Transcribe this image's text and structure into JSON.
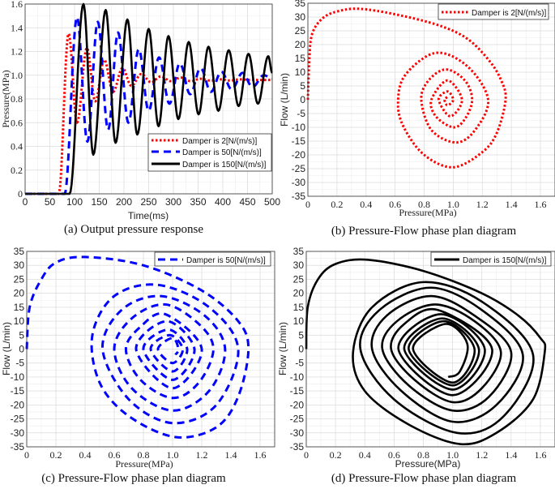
{
  "chart_data": [
    {
      "type": "line",
      "caption": "(a) Output pressure response",
      "xlabel": "Time(ms)",
      "ylabel": "Pressure(MPa)",
      "xlim": [
        0,
        500
      ],
      "ylim": [
        0,
        1.6
      ],
      "xticks": [
        "0",
        "50",
        "100",
        "150",
        "200",
        "250",
        "300",
        "350",
        "400",
        "450",
        "500"
      ],
      "yticks": [
        "0",
        "0.2",
        "0.4",
        "0.6",
        "0.8",
        "1.0",
        "1.2",
        "1.4",
        "1.6"
      ],
      "grid": true,
      "legend": "bottom-right",
      "series": [
        {
          "name": "Damper is 2[N/(m/s)]",
          "color": "#ff0000",
          "style": "dotted",
          "points": [
            [
              0,
              0
            ],
            [
              68,
              0
            ],
            [
              88,
              1.35
            ],
            [
              105,
              0.6
            ],
            [
              125,
              1.23
            ],
            [
              142,
              0.78
            ],
            [
              160,
              1.13
            ],
            [
              178,
              0.86
            ],
            [
              197,
              1.06
            ],
            [
              215,
              0.91
            ],
            [
              235,
              1.01
            ],
            [
              255,
              0.94
            ],
            [
              275,
              0.99
            ],
            [
              295,
              0.95
            ],
            [
              315,
              0.98
            ],
            [
              335,
              0.95
            ],
            [
              355,
              0.97
            ],
            [
              375,
              0.955
            ],
            [
              395,
              0.965
            ],
            [
              415,
              0.955
            ],
            [
              435,
              0.965
            ],
            [
              455,
              0.96
            ],
            [
              500,
              0.96
            ]
          ]
        },
        {
          "name": "Damper is 50[N/(m/s)]",
          "color": "#0000ff",
          "style": "dashed",
          "points": [
            [
              0,
              0
            ],
            [
              80,
              0
            ],
            [
              105,
              1.49
            ],
            [
              126,
              0.44
            ],
            [
              147,
              1.45
            ],
            [
              168,
              0.54
            ],
            [
              188,
              1.36
            ],
            [
              209,
              0.6
            ],
            [
              230,
              1.22
            ],
            [
              250,
              0.7
            ],
            [
              271,
              1.15
            ],
            [
              292,
              0.76
            ],
            [
              313,
              1.1
            ],
            [
              334,
              0.84
            ],
            [
              355,
              1.06
            ],
            [
              376,
              0.86
            ],
            [
              397,
              1.03
            ],
            [
              418,
              0.88
            ],
            [
              440,
              1.02
            ],
            [
              460,
              0.9
            ],
            [
              483,
              1.0
            ],
            [
              500,
              0.97
            ]
          ]
        },
        {
          "name": "Damper is 150[N/(m/s)]",
          "color": "#000000",
          "style": "solid",
          "points": [
            [
              0,
              0
            ],
            [
              90,
              0
            ],
            [
              118,
              1.6
            ],
            [
              138,
              0.33
            ],
            [
              163,
              1.55
            ],
            [
              183,
              0.43
            ],
            [
              207,
              1.47
            ],
            [
              227,
              0.5
            ],
            [
              250,
              1.39
            ],
            [
              270,
              0.57
            ],
            [
              290,
              1.33
            ],
            [
              310,
              0.63
            ],
            [
              331,
              1.28
            ],
            [
              351,
              0.67
            ],
            [
              371,
              1.24
            ],
            [
              391,
              0.7
            ],
            [
              412,
              1.21
            ],
            [
              432,
              0.74
            ],
            [
              452,
              1.18
            ],
            [
              471,
              0.76
            ],
            [
              492,
              1.16
            ],
            [
              500,
              1.02
            ]
          ]
        }
      ]
    },
    {
      "type": "line",
      "caption": "(b) Pressure-Flow phase plan diagram",
      "xlabel": "Pressure(MPa)",
      "ylabel": "Flow (L/min)",
      "xlim": [
        0,
        1.7
      ],
      "ylim": [
        -35,
        35
      ],
      "xticks": [
        "0",
        "0.2",
        "0.4",
        "0.6",
        "0.8",
        "1.0",
        "1.2",
        "1.4",
        "1.6"
      ],
      "yticks": [
        "-35",
        "-30",
        "-25",
        "-20",
        "-15",
        "-10",
        "-5",
        "0",
        "5",
        "10",
        "15",
        "20",
        "25",
        "30",
        "35"
      ],
      "grid": true,
      "legend": "top-right",
      "series": [
        {
          "name": "Damper is 2[N/(m/s)]",
          "color": "#ff0000",
          "style": "dotted",
          "points": [
            [
              0,
              0
            ],
            [
              0.01,
              15
            ],
            [
              0.03,
              24
            ],
            [
              0.1,
              29.5
            ],
            [
              0.2,
              32
            ],
            [
              0.35,
              33
            ],
            [
              0.6,
              31
            ],
            [
              0.9,
              27
            ],
            [
              1.1,
              22
            ],
            [
              1.25,
              14
            ],
            [
              1.33,
              7
            ],
            [
              1.36,
              0
            ],
            [
              1.3,
              -12
            ],
            [
              1.2,
              -19
            ],
            [
              1.0,
              -24.5
            ],
            [
              0.8,
              -20
            ],
            [
              0.66,
              -10
            ],
            [
              0.62,
              -1
            ],
            [
              0.67,
              9
            ],
            [
              0.88,
              17
            ],
            [
              1.1,
              12
            ],
            [
              1.24,
              0
            ],
            [
              1.15,
              -11
            ],
            [
              1.02,
              -15.5
            ],
            [
              0.85,
              -11
            ],
            [
              0.78,
              0
            ],
            [
              0.83,
              7
            ],
            [
              0.95,
              11
            ],
            [
              1.08,
              7
            ],
            [
              1.13,
              0
            ],
            [
              1.08,
              -7
            ],
            [
              1.0,
              -10
            ],
            [
              0.88,
              -6
            ],
            [
              0.85,
              0
            ],
            [
              0.96,
              7
            ],
            [
              1.06,
              0
            ],
            [
              0.98,
              -6
            ],
            [
              0.9,
              0
            ],
            [
              0.96,
              3
            ],
            [
              1.0,
              0
            ],
            [
              0.96,
              -2
            ],
            [
              0.94,
              0
            ],
            [
              0.96,
              1
            ]
          ]
        }
      ]
    },
    {
      "type": "line",
      "caption": "(c) Pressure-Flow phase plan diagram",
      "xlabel": "Pressure(MPa)",
      "ylabel": "Flow (L/min)",
      "xlim": [
        0,
        1.7
      ],
      "ylim": [
        -35,
        35
      ],
      "xticks": [
        "0",
        "0.2",
        "0.4",
        "0.6",
        "0.8",
        "1.0",
        "1.2",
        "1.4",
        "1.6"
      ],
      "yticks": [
        "-35",
        "-30",
        "-25",
        "-20",
        "-15",
        "-10",
        "-5",
        "0",
        "5",
        "10",
        "15",
        "20",
        "25",
        "30",
        "35"
      ],
      "grid": true,
      "legend": "top-right",
      "series": [
        {
          "name": "Damper is 50[N/(m/s)]",
          "color": "#0000ff",
          "style": "dashed",
          "points": [
            [
              0,
              0
            ],
            [
              0.02,
              15
            ],
            [
              0.1,
              25
            ],
            [
              0.2,
              31
            ],
            [
              0.4,
              33
            ],
            [
              0.8,
              30
            ],
            [
              1.2,
              21
            ],
            [
              1.45,
              10
            ],
            [
              1.52,
              0
            ],
            [
              1.45,
              -17
            ],
            [
              1.3,
              -28
            ],
            [
              1.02,
              -31.5
            ],
            [
              0.7,
              -24
            ],
            [
              0.5,
              -12
            ],
            [
              0.45,
              5
            ],
            [
              0.6,
              19
            ],
            [
              0.9,
              23
            ],
            [
              1.25,
              15
            ],
            [
              1.45,
              0
            ],
            [
              1.3,
              -20
            ],
            [
              1.0,
              -26.5
            ],
            [
              0.7,
              -18
            ],
            [
              0.52,
              0
            ],
            [
              0.65,
              14
            ],
            [
              0.92,
              19
            ],
            [
              1.22,
              12
            ],
            [
              1.36,
              0
            ],
            [
              1.25,
              -15
            ],
            [
              1.0,
              -22
            ],
            [
              0.72,
              -14
            ],
            [
              0.6,
              0
            ],
            [
              0.72,
              11
            ],
            [
              0.95,
              16
            ],
            [
              1.18,
              9
            ],
            [
              1.28,
              0
            ],
            [
              1.18,
              -12
            ],
            [
              1.0,
              -17.5
            ],
            [
              0.78,
              -11
            ],
            [
              0.68,
              0
            ],
            [
              0.78,
              8
            ],
            [
              0.95,
              12.5
            ],
            [
              1.2,
              0
            ],
            [
              1.0,
              -14
            ],
            [
              0.75,
              0
            ],
            [
              0.96,
              10
            ],
            [
              1.15,
              0
            ],
            [
              1.0,
              -11
            ],
            [
              0.8,
              0
            ],
            [
              0.97,
              7
            ],
            [
              1.1,
              0
            ],
            [
              1.0,
              -8
            ],
            [
              0.85,
              0
            ],
            [
              0.98,
              5
            ],
            [
              1.07,
              0
            ],
            [
              1.0,
              -5
            ],
            [
              0.9,
              0
            ],
            [
              1.0,
              4
            ],
            [
              1.04,
              0
            ],
            [
              1.02,
              -2
            ]
          ]
        }
      ]
    },
    {
      "type": "line",
      "caption": "(d) Pressure-Flow phase plan diagram",
      "xlabel": "Pressure(MPa)",
      "ylabel": "Flow (L/min)",
      "xlim": [
        0,
        1.7
      ],
      "ylim": [
        -35,
        35
      ],
      "xticks": [
        "0",
        "0.2",
        "0.4",
        "0.6",
        "0.8",
        "1.0",
        "1.2",
        "1.4",
        "1.6"
      ],
      "yticks": [
        "-35",
        "-30",
        "-25",
        "-20",
        "-15",
        "-10",
        "-5",
        "0",
        "5",
        "10",
        "15",
        "20",
        "25",
        "30",
        "35"
      ],
      "grid": true,
      "legend": "top-right",
      "series": [
        {
          "name": "Damper is 150[N/(m/s)]",
          "color": "#000000",
          "style": "solid",
          "points": [
            [
              0,
              0
            ],
            [
              0.01,
              15
            ],
            [
              0.08,
              25
            ],
            [
              0.2,
              30.5
            ],
            [
              0.42,
              32
            ],
            [
              0.8,
              28
            ],
            [
              1.2,
              20
            ],
            [
              1.45,
              12
            ],
            [
              1.6,
              4
            ],
            [
              1.63,
              -1
            ],
            [
              1.55,
              -18
            ],
            [
              1.3,
              -30
            ],
            [
              1.05,
              -34
            ],
            [
              0.7,
              -27
            ],
            [
              0.4,
              -15
            ],
            [
              0.32,
              -1
            ],
            [
              0.45,
              15
            ],
            [
              0.8,
              24
            ],
            [
              1.2,
              17
            ],
            [
              1.55,
              -2
            ],
            [
              1.35,
              -24
            ],
            [
              1.03,
              -30
            ],
            [
              0.6,
              -18
            ],
            [
              0.37,
              0
            ],
            [
              0.5,
              14
            ],
            [
              0.85,
              22
            ],
            [
              1.2,
              14
            ],
            [
              1.48,
              -2
            ],
            [
              1.3,
              -20
            ],
            [
              1.0,
              -26
            ],
            [
              0.65,
              -15
            ],
            [
              0.45,
              0
            ],
            [
              0.55,
              12
            ],
            [
              0.85,
              19
            ],
            [
              1.15,
              12
            ],
            [
              1.4,
              -1
            ],
            [
              1.25,
              -17
            ],
            [
              1.0,
              -22
            ],
            [
              0.7,
              -13
            ],
            [
              0.52,
              0
            ],
            [
              0.62,
              10
            ],
            [
              0.88,
              16
            ],
            [
              1.15,
              10
            ],
            [
              1.33,
              -1
            ],
            [
              1.2,
              -14
            ],
            [
              1.0,
              -19
            ],
            [
              0.74,
              -11
            ],
            [
              0.58,
              0
            ],
            [
              0.67,
              9
            ],
            [
              0.9,
              14
            ],
            [
              1.27,
              0
            ],
            [
              1.0,
              -16.5
            ],
            [
              0.63,
              0
            ],
            [
              0.92,
              12.5
            ],
            [
              1.22,
              0
            ],
            [
              1.0,
              -14.5
            ],
            [
              0.67,
              0
            ],
            [
              0.93,
              11
            ],
            [
              1.18,
              0
            ],
            [
              1.0,
              -13
            ],
            [
              0.7,
              0
            ],
            [
              0.94,
              10
            ],
            [
              1.15,
              0
            ],
            [
              1.0,
              -12
            ],
            [
              0.73,
              0
            ],
            [
              0.95,
              9
            ],
            [
              1.1,
              2
            ],
            [
              1.05,
              -8
            ],
            [
              0.97,
              -10
            ]
          ]
        }
      ]
    }
  ]
}
